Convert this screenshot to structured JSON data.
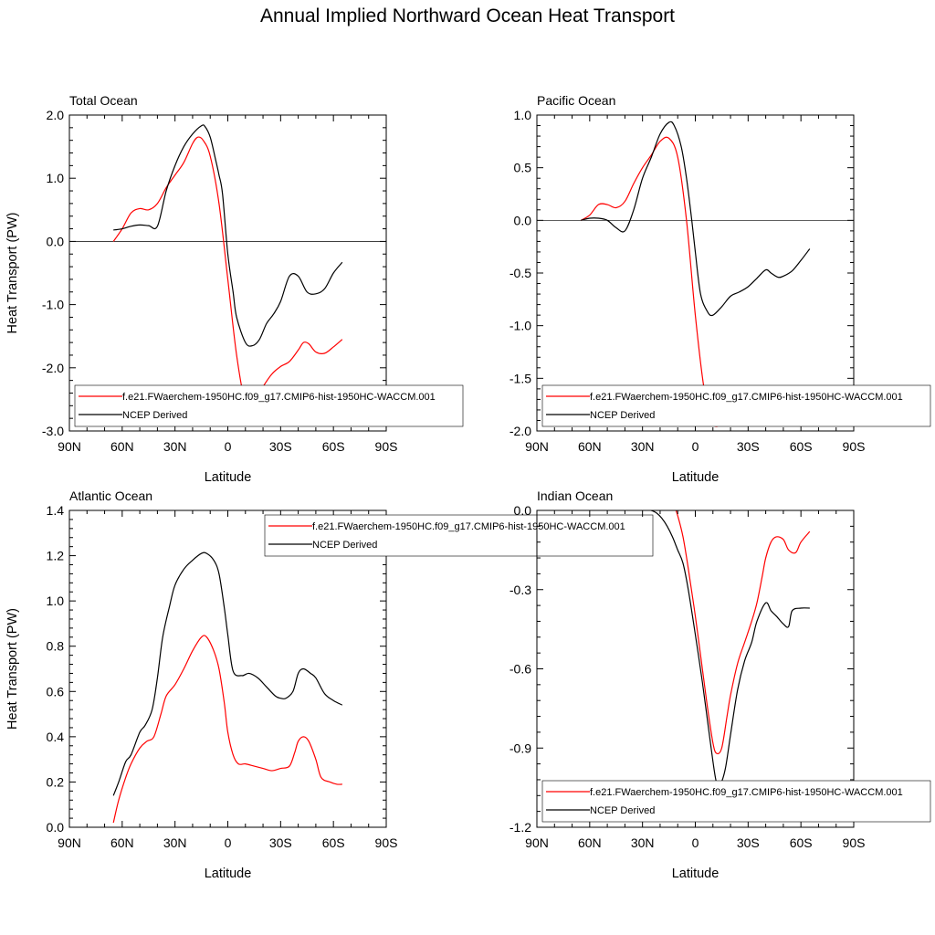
{
  "title": "Annual Implied Northward Ocean Heat Transport",
  "colors": {
    "model": "#ff0000",
    "obs": "#000000",
    "zero_line": "#000000"
  },
  "chart_data": [
    {
      "type": "line",
      "title": "Total Ocean",
      "xlabel": "Latitude",
      "ylabel": "Heat Transport (PW)",
      "xlim": [
        90,
        -90
      ],
      "ylim": [
        -3.0,
        2.0
      ],
      "x_ticks": [
        90,
        60,
        30,
        0,
        -30,
        -60,
        -90
      ],
      "x_tick_labels": [
        "90N",
        "60N",
        "30N",
        "0",
        "30S",
        "60S",
        "90S"
      ],
      "y_ticks": [
        -3.0,
        -2.0,
        -1.0,
        0.0,
        1.0,
        2.0
      ],
      "y_tick_labels": [
        "-3.0",
        "-2.0",
        "-1.0",
        "0.0",
        "1.0",
        "2.0"
      ],
      "legend": {
        "placement": "bottom",
        "entries": [
          "f.e21.FWaerchem-1950HC.f09_g17.CMIP6-hist-1950HC-WACCM.001",
          "NCEP Derived"
        ]
      },
      "series": [
        {
          "name": "f.e21.FWaerchem-1950HC.f09_g17.CMIP6-hist-1950HC-WACCM.001",
          "x": [
            65,
            60,
            55,
            50,
            45,
            40,
            35,
            30,
            25,
            20,
            17,
            14,
            10,
            5,
            0,
            -5,
            -10,
            -15,
            -20,
            -25,
            -30,
            -35,
            -40,
            -43,
            -46,
            -50,
            -55,
            -60,
            -65
          ],
          "y": [
            0.0,
            0.2,
            0.45,
            0.52,
            0.5,
            0.6,
            0.85,
            1.05,
            1.25,
            1.55,
            1.65,
            1.6,
            1.35,
            0.6,
            -0.6,
            -1.8,
            -2.55,
            -2.55,
            -2.3,
            -2.1,
            -1.98,
            -1.9,
            -1.72,
            -1.6,
            -1.62,
            -1.75,
            -1.77,
            -1.67,
            -1.55
          ]
        },
        {
          "name": "NCEP Derived",
          "x": [
            65,
            60,
            55,
            50,
            45,
            40,
            35,
            30,
            25,
            20,
            15,
            13,
            10,
            7,
            5,
            3,
            0,
            -3,
            -5,
            -10,
            -14,
            -18,
            -22,
            -26,
            -30,
            -35,
            -40,
            -45,
            -50,
            -55,
            -60,
            -65
          ],
          "y": [
            0.18,
            0.2,
            0.24,
            0.26,
            0.25,
            0.24,
            0.8,
            1.2,
            1.5,
            1.7,
            1.83,
            1.82,
            1.65,
            1.3,
            1.05,
            0.75,
            -0.2,
            -0.8,
            -1.2,
            -1.6,
            -1.65,
            -1.55,
            -1.3,
            -1.15,
            -0.95,
            -0.55,
            -0.55,
            -0.8,
            -0.83,
            -0.75,
            -0.5,
            -0.33
          ]
        }
      ]
    },
    {
      "type": "line",
      "title": "Pacific Ocean",
      "xlabel": "Latitude",
      "ylabel": "",
      "xlim": [
        90,
        -90
      ],
      "ylim": [
        -2.0,
        1.0
      ],
      "x_ticks": [
        90,
        60,
        30,
        0,
        -30,
        -60,
        -90
      ],
      "x_tick_labels": [
        "90N",
        "60N",
        "30N",
        "0",
        "30S",
        "60S",
        "90S"
      ],
      "y_ticks": [
        -2.0,
        -1.5,
        -1.0,
        -0.5,
        0.0,
        0.5,
        1.0
      ],
      "y_tick_labels": [
        "-2.0",
        "-1.5",
        "-1.0",
        "-0.5",
        "0.0",
        "0.5",
        "1.0"
      ],
      "legend": {
        "placement": "bottom",
        "entries": [
          "f.e21.FWaerchem-1950HC.f09_g17.CMIP6-hist-1950HC-WACCM.001",
          "NCEP Derived"
        ]
      },
      "series": [
        {
          "name": "f.e21.FWaerchem-1950HC.f09_g17.CMIP6-hist-1950HC-WACCM.001",
          "x": [
            65,
            60,
            55,
            50,
            45,
            40,
            35,
            30,
            25,
            20,
            15,
            10,
            5,
            0,
            -5,
            -10,
            -15,
            -20,
            -25,
            -30,
            -35,
            -40,
            -45,
            -50,
            -55,
            -60,
            -65
          ],
          "y": [
            0.0,
            0.05,
            0.15,
            0.15,
            0.12,
            0.18,
            0.35,
            0.5,
            0.62,
            0.75,
            0.78,
            0.6,
            0.0,
            -0.9,
            -1.6,
            -1.93,
            -1.93,
            -1.86,
            -1.82,
            -1.8,
            -1.82,
            -1.86,
            -1.9,
            -1.9,
            -1.82,
            -1.75,
            -1.7
          ]
        },
        {
          "name": "NCEP Derived",
          "x": [
            65,
            60,
            55,
            50,
            45,
            40,
            35,
            30,
            25,
            20,
            15,
            12,
            8,
            5,
            2,
            0,
            -3,
            -7,
            -10,
            -15,
            -20,
            -25,
            -30,
            -35,
            -40,
            -43,
            -47,
            -50,
            -55,
            -60,
            -65
          ],
          "y": [
            0.0,
            0.02,
            0.02,
            0.0,
            -0.07,
            -0.1,
            0.1,
            0.4,
            0.6,
            0.82,
            0.93,
            0.9,
            0.7,
            0.4,
            0.0,
            -0.3,
            -0.7,
            -0.87,
            -0.9,
            -0.82,
            -0.72,
            -0.68,
            -0.63,
            -0.55,
            -0.47,
            -0.5,
            -0.54,
            -0.53,
            -0.48,
            -0.38,
            -0.27
          ]
        }
      ]
    },
    {
      "type": "line",
      "title": "Atlantic Ocean",
      "xlabel": "Latitude",
      "ylabel": "Heat Transport (PW)",
      "xlim": [
        90,
        -90
      ],
      "ylim": [
        0.0,
        1.4
      ],
      "x_ticks": [
        90,
        60,
        30,
        0,
        -30,
        -60,
        -90
      ],
      "x_tick_labels": [
        "90N",
        "60N",
        "30N",
        "0",
        "30S",
        "60S",
        "90S"
      ],
      "y_ticks": [
        0.0,
        0.2,
        0.4,
        0.6,
        0.8,
        1.0,
        1.2,
        1.4
      ],
      "y_tick_labels": [
        "0.0",
        "0.2",
        "0.4",
        "0.6",
        "0.8",
        "1.0",
        "1.2",
        "1.4"
      ],
      "legend": {
        "placement": "top-right",
        "entries": [
          "f.e21.FWaerchem-1950HC.f09_g17.CMIP6-hist-1950HC-WACCM.001",
          "NCEP Derived"
        ]
      },
      "series": [
        {
          "name": "f.e21.FWaerchem-1950HC.f09_g17.CMIP6-hist-1950HC-WACCM.001",
          "x": [
            65,
            62,
            58,
            55,
            50,
            46,
            42,
            38,
            35,
            30,
            25,
            20,
            15,
            12,
            8,
            5,
            2,
            0,
            -3,
            -6,
            -10,
            -15,
            -20,
            -25,
            -30,
            -35,
            -38,
            -40,
            -43,
            -46,
            -50,
            -53,
            -58,
            -62,
            -65
          ],
          "y": [
            0.02,
            0.12,
            0.22,
            0.28,
            0.35,
            0.38,
            0.4,
            0.5,
            0.58,
            0.63,
            0.7,
            0.78,
            0.84,
            0.84,
            0.78,
            0.7,
            0.55,
            0.42,
            0.32,
            0.28,
            0.28,
            0.27,
            0.26,
            0.25,
            0.26,
            0.27,
            0.33,
            0.38,
            0.4,
            0.38,
            0.3,
            0.22,
            0.2,
            0.19,
            0.19
          ]
        },
        {
          "name": "NCEP Derived",
          "x": [
            65,
            62,
            58,
            55,
            50,
            47,
            43,
            40,
            37,
            33,
            30,
            25,
            20,
            15,
            12,
            8,
            5,
            2,
            0,
            -3,
            -8,
            -12,
            -17,
            -22,
            -27,
            -30,
            -33,
            -37,
            -40,
            -43,
            -47,
            -50,
            -55,
            -60,
            -65
          ],
          "y": [
            0.14,
            0.2,
            0.29,
            0.32,
            0.42,
            0.45,
            0.52,
            0.66,
            0.84,
            0.98,
            1.07,
            1.14,
            1.18,
            1.21,
            1.21,
            1.18,
            1.12,
            0.97,
            0.85,
            0.69,
            0.67,
            0.68,
            0.66,
            0.62,
            0.58,
            0.57,
            0.57,
            0.6,
            0.68,
            0.7,
            0.68,
            0.66,
            0.59,
            0.56,
            0.54
          ]
        }
      ]
    },
    {
      "type": "line",
      "title": "Indian Ocean",
      "xlabel": "Latitude",
      "ylabel": "",
      "xlim": [
        90,
        -90
      ],
      "ylim": [
        -1.2,
        0.0
      ],
      "x_ticks": [
        90,
        60,
        30,
        0,
        -30,
        -60,
        -90
      ],
      "x_tick_labels": [
        "90N",
        "60N",
        "30N",
        "0",
        "30S",
        "60S",
        "90S"
      ],
      "y_ticks": [
        -1.2,
        -0.9,
        -0.6,
        -0.3,
        0.0
      ],
      "y_tick_labels": [
        "-1.2",
        "-0.9",
        "-0.6",
        "-0.3",
        "0.0"
      ],
      "legend": {
        "placement": "bottom",
        "entries": [
          "f.e21.FWaerchem-1950HC.f09_g17.CMIP6-hist-1950HC-WACCM.001",
          "NCEP Derived"
        ]
      },
      "series": [
        {
          "name": "f.e21.FWaerchem-1950HC.f09_g17.CMIP6-hist-1950HC-WACCM.001",
          "x": [
            25,
            20,
            17,
            14,
            12,
            10,
            7,
            4,
            0,
            -4,
            -7,
            -10,
            -12,
            -15,
            -18,
            -20,
            -24,
            -28,
            -32,
            -35,
            -38,
            -40,
            -43,
            -46,
            -50,
            -53,
            -57,
            -60,
            -65
          ],
          "y": [
            0.0,
            0.005,
            0.01,
            0.02,
            0.015,
            -0.02,
            -0.1,
            -0.22,
            -0.4,
            -0.6,
            -0.75,
            -0.88,
            -0.92,
            -0.9,
            -0.78,
            -0.7,
            -0.58,
            -0.5,
            -0.42,
            -0.35,
            -0.25,
            -0.18,
            -0.12,
            -0.1,
            -0.11,
            -0.15,
            -0.16,
            -0.12,
            -0.08
          ]
        },
        {
          "name": "NCEP Derived",
          "x": [
            25,
            22,
            19,
            16,
            13,
            10,
            7,
            4,
            0,
            -4,
            -7,
            -10,
            -12,
            -14,
            -17,
            -20,
            -24,
            -28,
            -32,
            -35,
            -40,
            -43,
            -46,
            -50,
            -53,
            -55,
            -60,
            -65
          ],
          "y": [
            0.0,
            -0.01,
            -0.03,
            -0.06,
            -0.1,
            -0.15,
            -0.2,
            -0.3,
            -0.47,
            -0.65,
            -0.8,
            -0.95,
            -1.03,
            -1.04,
            -0.98,
            -0.85,
            -0.68,
            -0.57,
            -0.5,
            -0.42,
            -0.35,
            -0.38,
            -0.4,
            -0.43,
            -0.44,
            -0.38,
            -0.37,
            -0.37
          ]
        }
      ]
    }
  ]
}
